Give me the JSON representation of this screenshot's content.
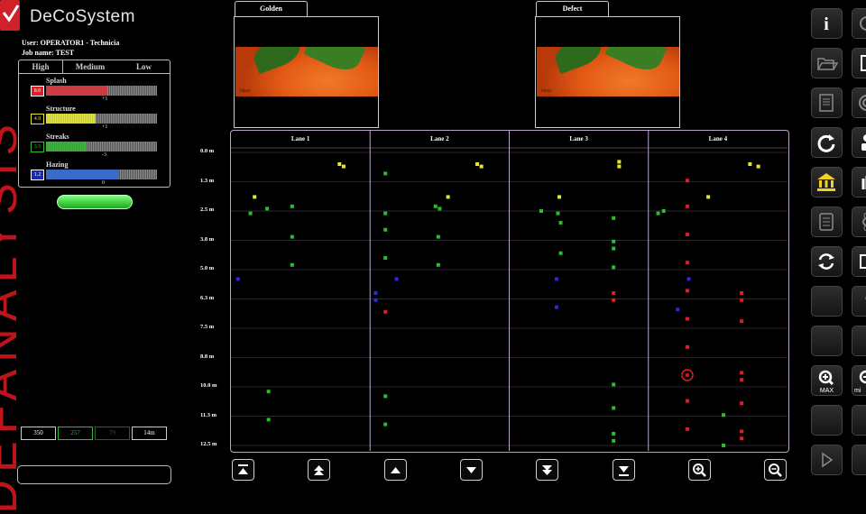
{
  "app": {
    "logo_text": "DeCoSystem",
    "vertical_text": "DEFANALYSIS",
    "brand_color": "#d0202a"
  },
  "user_line": "User: OPERATOR1 - Technicia",
  "job_line": "Job name: TEST",
  "severity": {
    "tabs": [
      "High",
      "Medium",
      "Low"
    ],
    "defects": [
      {
        "name": "Splash",
        "badge": "8.0",
        "fill": 0.55,
        "delta": "+1",
        "color": "#e8333a",
        "badge_bg": "#e01c24",
        "badge_fg": "#ffffff"
      },
      {
        "name": "Structure",
        "badge": "4.9",
        "fill": 0.45,
        "delta": "+1",
        "color": "#e6e62a",
        "badge_bg": "#000000",
        "badge_fg": "#e6e62a"
      },
      {
        "name": "Streaks",
        "badge": "3.5",
        "fill": 0.36,
        "delta": "-3",
        "color": "#2bbd2b",
        "badge_bg": "#000000",
        "badge_fg": "#2bbd2b"
      },
      {
        "name": "Hazing",
        "badge": "1.2",
        "fill": 0.66,
        "delta": "0",
        "color": "#2f6fe0",
        "badge_bg": "#1a2aa8",
        "badge_fg": "#ffffff"
      }
    ]
  },
  "counters": [
    {
      "value": "350",
      "border": "#cccccc",
      "fg": "#ffffff"
    },
    {
      "value": "257",
      "border": "#2bbd2b",
      "fg": "#2bbd2b"
    },
    {
      "value": "79",
      "border": "#c0141c",
      "fg": "#c0141c"
    },
    {
      "value": "14m",
      "border": "#cccccc",
      "fg": "#ffffff"
    }
  ],
  "images": {
    "golden_label": "Golden",
    "defect_label": "Defect",
    "scale_label": "10mm"
  },
  "chart_data": {
    "type": "scatter",
    "lanes": [
      "Lane 1",
      "Lane 2",
      "Lane 3",
      "Lane 4"
    ],
    "y_ticks": [
      "0.0 m",
      "1.3 m",
      "2.5 m",
      "3.8 m",
      "5.0 m",
      "6.3 m",
      "7.5 m",
      "8.8 m",
      "10.0 m",
      "11.3 m",
      "12.5 m"
    ],
    "ylim": [
      0,
      12.5
    ],
    "series_colors": {
      "yellow": "#e6e62a",
      "green": "#2bbd2b",
      "blue": "#2a2ad8",
      "red": "#e01c24"
    },
    "points": [
      {
        "lane": 1,
        "x": 0.78,
        "y": 0.5,
        "c": "yellow"
      },
      {
        "lane": 1,
        "x": 0.81,
        "y": 0.6,
        "c": "yellow"
      },
      {
        "lane": 1,
        "x": 0.17,
        "y": 1.9,
        "c": "yellow"
      },
      {
        "lane": 1,
        "x": 0.14,
        "y": 2.6,
        "c": "green"
      },
      {
        "lane": 1,
        "x": 0.26,
        "y": 2.4,
        "c": "green"
      },
      {
        "lane": 1,
        "x": 0.44,
        "y": 2.3,
        "c": "green"
      },
      {
        "lane": 1,
        "x": 0.44,
        "y": 3.6,
        "c": "green"
      },
      {
        "lane": 1,
        "x": 0.44,
        "y": 4.8,
        "c": "green"
      },
      {
        "lane": 1,
        "x": 0.05,
        "y": 5.4,
        "c": "blue"
      },
      {
        "lane": 1,
        "x": 0.27,
        "y": 10.2,
        "c": "green"
      },
      {
        "lane": 1,
        "x": 0.27,
        "y": 11.4,
        "c": "green"
      },
      {
        "lane": 2,
        "x": 0.77,
        "y": 0.5,
        "c": "yellow"
      },
      {
        "lane": 2,
        "x": 0.8,
        "y": 0.6,
        "c": "yellow"
      },
      {
        "lane": 2,
        "x": 0.11,
        "y": 0.9,
        "c": "green"
      },
      {
        "lane": 2,
        "x": 0.56,
        "y": 1.9,
        "c": "yellow"
      },
      {
        "lane": 2,
        "x": 0.47,
        "y": 2.3,
        "c": "green"
      },
      {
        "lane": 2,
        "x": 0.5,
        "y": 2.4,
        "c": "green"
      },
      {
        "lane": 2,
        "x": 0.11,
        "y": 2.6,
        "c": "green"
      },
      {
        "lane": 2,
        "x": 0.11,
        "y": 3.3,
        "c": "green"
      },
      {
        "lane": 2,
        "x": 0.49,
        "y": 3.6,
        "c": "green"
      },
      {
        "lane": 2,
        "x": 0.11,
        "y": 4.5,
        "c": "green"
      },
      {
        "lane": 2,
        "x": 0.49,
        "y": 4.8,
        "c": "green"
      },
      {
        "lane": 2,
        "x": 0.19,
        "y": 5.4,
        "c": "blue"
      },
      {
        "lane": 2,
        "x": 0.04,
        "y": 6.0,
        "c": "blue"
      },
      {
        "lane": 2,
        "x": 0.04,
        "y": 6.3,
        "c": "blue"
      },
      {
        "lane": 2,
        "x": 0.11,
        "y": 6.8,
        "c": "red"
      },
      {
        "lane": 2,
        "x": 0.11,
        "y": 10.4,
        "c": "green"
      },
      {
        "lane": 2,
        "x": 0.11,
        "y": 11.6,
        "c": "green"
      },
      {
        "lane": 3,
        "x": 0.79,
        "y": 0.4,
        "c": "yellow"
      },
      {
        "lane": 3,
        "x": 0.79,
        "y": 0.6,
        "c": "yellow"
      },
      {
        "lane": 3,
        "x": 0.36,
        "y": 1.9,
        "c": "yellow"
      },
      {
        "lane": 3,
        "x": 0.23,
        "y": 2.5,
        "c": "green"
      },
      {
        "lane": 3,
        "x": 0.35,
        "y": 2.6,
        "c": "green"
      },
      {
        "lane": 3,
        "x": 0.37,
        "y": 3.0,
        "c": "green"
      },
      {
        "lane": 3,
        "x": 0.75,
        "y": 2.8,
        "c": "green"
      },
      {
        "lane": 3,
        "x": 0.37,
        "y": 4.3,
        "c": "green"
      },
      {
        "lane": 3,
        "x": 0.75,
        "y": 3.8,
        "c": "green"
      },
      {
        "lane": 3,
        "x": 0.75,
        "y": 4.1,
        "c": "green"
      },
      {
        "lane": 3,
        "x": 0.75,
        "y": 4.9,
        "c": "green"
      },
      {
        "lane": 3,
        "x": 0.34,
        "y": 5.4,
        "c": "blue"
      },
      {
        "lane": 3,
        "x": 0.75,
        "y": 6.0,
        "c": "red"
      },
      {
        "lane": 3,
        "x": 0.75,
        "y": 6.3,
        "c": "red"
      },
      {
        "lane": 3,
        "x": 0.34,
        "y": 6.6,
        "c": "blue"
      },
      {
        "lane": 3,
        "x": 0.75,
        "y": 9.9,
        "c": "green"
      },
      {
        "lane": 3,
        "x": 0.75,
        "y": 10.9,
        "c": "green"
      },
      {
        "lane": 3,
        "x": 0.75,
        "y": 12.0,
        "c": "green"
      },
      {
        "lane": 3,
        "x": 0.75,
        "y": 12.3,
        "c": "green"
      },
      {
        "lane": 4,
        "x": 0.73,
        "y": 0.5,
        "c": "yellow"
      },
      {
        "lane": 4,
        "x": 0.79,
        "y": 0.6,
        "c": "yellow"
      },
      {
        "lane": 4,
        "x": 0.28,
        "y": 1.2,
        "c": "red"
      },
      {
        "lane": 4,
        "x": 0.43,
        "y": 1.9,
        "c": "yellow"
      },
      {
        "lane": 4,
        "x": 0.07,
        "y": 2.6,
        "c": "green"
      },
      {
        "lane": 4,
        "x": 0.11,
        "y": 2.5,
        "c": "green"
      },
      {
        "lane": 4,
        "x": 0.28,
        "y": 2.3,
        "c": "red"
      },
      {
        "lane": 4,
        "x": 0.28,
        "y": 3.5,
        "c": "red"
      },
      {
        "lane": 4,
        "x": 0.28,
        "y": 4.7,
        "c": "red"
      },
      {
        "lane": 4,
        "x": 0.29,
        "y": 5.4,
        "c": "blue"
      },
      {
        "lane": 4,
        "x": 0.28,
        "y": 5.9,
        "c": "red"
      },
      {
        "lane": 4,
        "x": 0.67,
        "y": 6.0,
        "c": "red"
      },
      {
        "lane": 4,
        "x": 0.67,
        "y": 6.3,
        "c": "red"
      },
      {
        "lane": 4,
        "x": 0.21,
        "y": 6.7,
        "c": "blue"
      },
      {
        "lane": 4,
        "x": 0.28,
        "y": 7.1,
        "c": "red"
      },
      {
        "lane": 4,
        "x": 0.67,
        "y": 7.2,
        "c": "red"
      },
      {
        "lane": 4,
        "x": 0.28,
        "y": 8.3,
        "c": "red"
      },
      {
        "lane": 4,
        "x": 0.67,
        "y": 9.4,
        "c": "red"
      },
      {
        "lane": 4,
        "x": 0.67,
        "y": 9.7,
        "c": "red"
      },
      {
        "lane": 4,
        "x": 0.67,
        "y": 10.7,
        "c": "red"
      },
      {
        "lane": 4,
        "x": 0.28,
        "y": 10.6,
        "c": "red"
      },
      {
        "lane": 4,
        "x": 0.28,
        "y": 11.8,
        "c": "red"
      },
      {
        "lane": 4,
        "x": 0.54,
        "y": 11.2,
        "c": "green"
      },
      {
        "lane": 4,
        "x": 0.67,
        "y": 11.9,
        "c": "red"
      },
      {
        "lane": 4,
        "x": 0.67,
        "y": 12.2,
        "c": "red"
      },
      {
        "lane": 4,
        "x": 0.54,
        "y": 12.5,
        "c": "green"
      }
    ],
    "highlight": {
      "lane": 4,
      "x": 0.28,
      "y": 9.5
    }
  },
  "bottom_nav": [
    "nav-first-icon",
    "nav-page-up-icon",
    "nav-up-icon",
    "nav-down-icon",
    "nav-page-down-icon",
    "nav-last-icon",
    "zoom-in-icon",
    "zoom-out-icon"
  ],
  "right_panel": {
    "col1": [
      "info-icon",
      "open-folder-icon",
      "report-icon",
      "refresh-icon",
      "bank-icon",
      "settings-panel-icon",
      "sync-icon",
      "blank-button",
      "zoom-in-icon",
      "zoom-max-icon",
      "blank-button",
      "play-icon"
    ],
    "col2": [
      "camera-icon",
      "document-icon",
      "target-icon",
      "user-icon",
      "hand-icon",
      "flower-icon",
      "image-icon",
      "text-icon",
      "zoom-out-icon",
      "zoom-min-icon",
      "blank-button",
      "blank-button"
    ],
    "zoom_max_label": "MAX",
    "zoom_min_label": "mi"
  }
}
